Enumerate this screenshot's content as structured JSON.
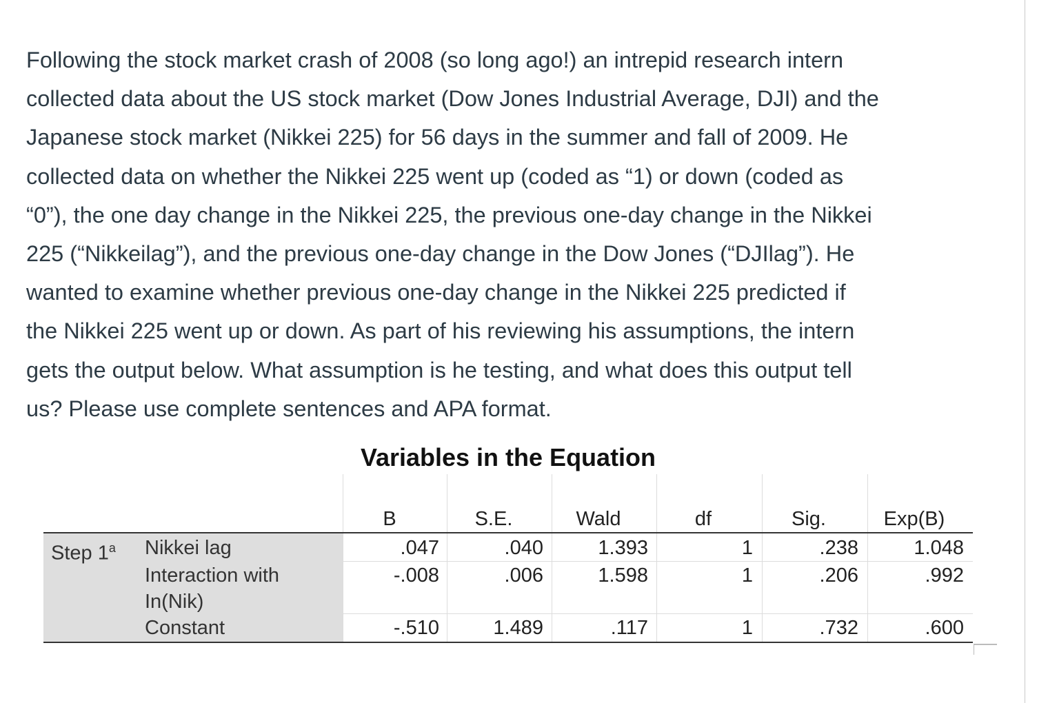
{
  "question": {
    "lines": [
      "Following the stock market crash of 2008 (so long ago!) an intrepid research intern",
      "collected data about the US stock market (Dow Jones Industrial Average, DJI) and the",
      "Japanese stock market (Nikkei 225) for 56 days in the summer and fall of 2009. He",
      "collected data on whether the Nikkei 225 went up (coded as “1) or down (coded as",
      "“0”), the one day change in the Nikkei 225, the previous one-day change in the Nikkei",
      "225 (“Nikkeilag”), and the previous one-day change in the Dow Jones (“DJIlag”). He",
      "wanted to examine whether previous one-day change in the Nikkei 225 predicted if",
      "the Nikkei 225 went up or down. As part of his reviewing his assumptions, the intern",
      "gets the output below. What assumption is he testing, and what does this output tell",
      "us? Please use complete sentences and APA format."
    ]
  },
  "table": {
    "title": "Variables in the Equation",
    "columns": [
      "B",
      "S.E.",
      "Wald",
      "df",
      "Sig.",
      "Exp(B)"
    ],
    "step_label": "Step 1",
    "step_superscript": "a",
    "rows": [
      {
        "label": [
          "Nikkei lag"
        ],
        "cells": [
          ".047",
          ".040",
          "1.393",
          "1",
          ".238",
          "1.048"
        ]
      },
      {
        "label": [
          "Interaction with",
          "In(Nik)"
        ],
        "cells": [
          "-.008",
          ".006",
          "1.598",
          "1",
          ".206",
          ".992"
        ]
      },
      {
        "label": [
          "Constant"
        ],
        "cells": [
          "-.510",
          "1.489",
          ".117",
          "1",
          ".732",
          ".600"
        ]
      }
    ]
  }
}
